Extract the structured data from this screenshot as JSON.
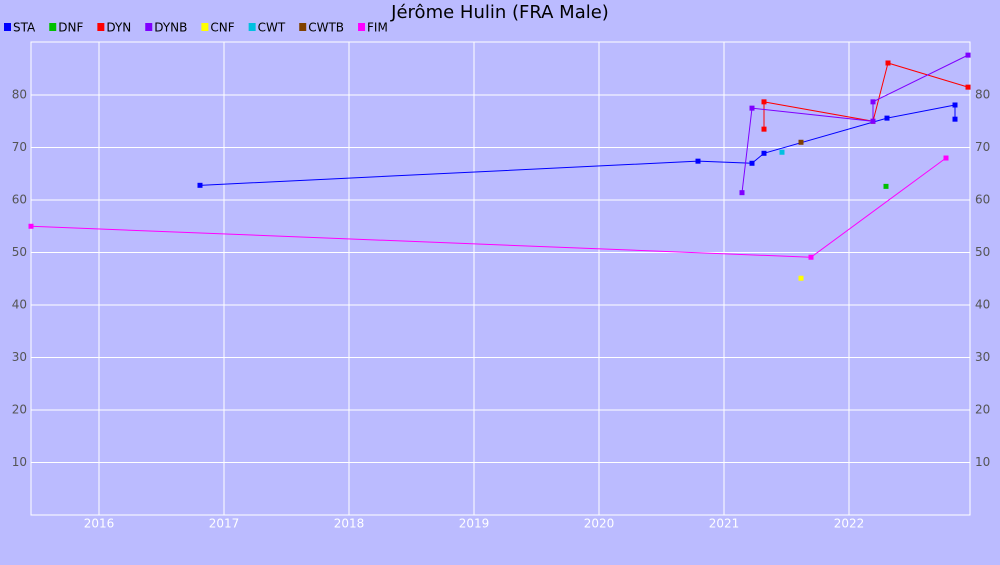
{
  "chart_data": {
    "type": "line",
    "title": "Jérôme Hulin (FRA Male)",
    "xlim": [
      2015.456,
      2022.968
    ],
    "xticks": [
      2016,
      2017,
      2018,
      2019,
      2020,
      2021,
      2022
    ],
    "ylim": [
      0,
      90.1
    ],
    "yticks": [
      10,
      20,
      30,
      40,
      50,
      60,
      70,
      80
    ],
    "grid": true,
    "legend": "top-left",
    "series": [
      {
        "name": "STA",
        "color": "#0000ff",
        "x": [
          2016.808,
          2020.792,
          2021.224,
          2021.32,
          2022.304,
          2022.848,
          2022.848
        ],
        "values": [
          62.8,
          67.4,
          67.0,
          68.9,
          75.6,
          78.1,
          75.4
        ]
      },
      {
        "name": "DNF",
        "color": "#00c000",
        "x": [
          2022.296
        ],
        "values": [
          62.6
        ]
      },
      {
        "name": "DYN",
        "color": "#ff0000",
        "x": [
          2021.32,
          2021.32,
          2022.192,
          2022.312,
          2022.952
        ],
        "values": [
          73.5,
          78.7,
          75.0,
          86.1,
          81.5
        ]
      },
      {
        "name": "DYNB",
        "color": "#7f00ff",
        "x": [
          2021.144,
          2021.224,
          2022.192,
          2022.192,
          2022.952
        ],
        "values": [
          61.4,
          77.5,
          75.0,
          78.7,
          87.6
        ]
      },
      {
        "name": "CNF",
        "color": "#ffff00",
        "x": [
          2021.616
        ],
        "values": [
          45.1
        ]
      },
      {
        "name": "CWT",
        "color": "#00c0e0",
        "x": [
          2021.464
        ],
        "values": [
          69.1
        ]
      },
      {
        "name": "CWTB",
        "color": "#804000",
        "x": [
          2021.616
        ],
        "values": [
          71.0
        ]
      },
      {
        "name": "FIM",
        "color": "#ff00ff",
        "x": [
          2015.456,
          2021.696,
          2022.776
        ],
        "values": [
          55.0,
          49.1,
          68.0
        ]
      }
    ]
  }
}
